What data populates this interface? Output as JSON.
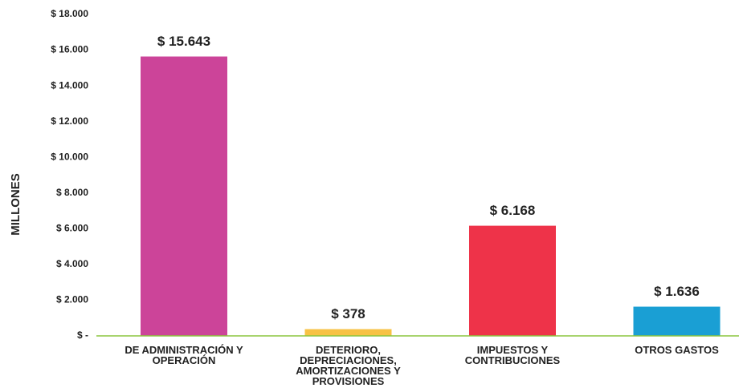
{
  "chart_data": {
    "type": "bar",
    "y_label": "MILLONES",
    "categories": [
      "DE ADMINISTRACIÓN Y OPERACIÓN",
      "DETERIORO, DEPRECIACIONES, AMORTIZACIONES Y PROVISIONES",
      "IMPUESTOS Y CONTRIBUCIONES",
      "OTROS GASTOS"
    ],
    "values": [
      15643,
      378,
      6168,
      1636
    ],
    "value_labels": [
      "$ 15.643",
      "$ 378",
      "$ 6.168",
      "$ 1.636"
    ],
    "colors": [
      "#cc4499",
      "#f7c244",
      "#ee3349",
      "#1a9fd4"
    ],
    "ylim": [
      0,
      18000
    ],
    "yticks": [
      {
        "value": 0,
        "label": "$ -"
      },
      {
        "value": 2000,
        "label": "$ 2.000"
      },
      {
        "value": 4000,
        "label": "$ 4.000"
      },
      {
        "value": 6000,
        "label": "$ 6.000"
      },
      {
        "value": 8000,
        "label": "$ 8.000"
      },
      {
        "value": 10000,
        "label": "$ 10.000"
      },
      {
        "value": 12000,
        "label": "$ 12.000"
      },
      {
        "value": 14000,
        "label": "$ 14.000"
      },
      {
        "value": 16000,
        "label": "$ 16.000"
      },
      {
        "value": 18000,
        "label": "$ 18.000"
      }
    ],
    "grid": false,
    "baseline_color": "#8cc63f"
  }
}
